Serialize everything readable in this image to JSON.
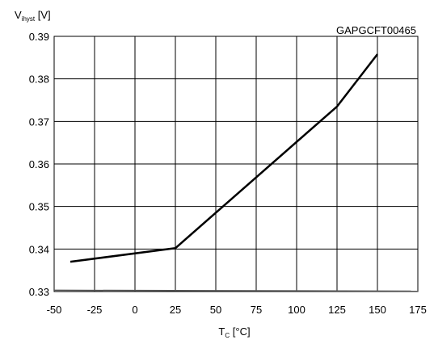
{
  "chart_data": {
    "type": "line",
    "figure_id": "GAPGCFT00465",
    "ylabel": {
      "main": "V",
      "sub": "ihyst",
      "unit": " [V]"
    },
    "xlabel": {
      "main": "T",
      "sub": "C",
      "unit": " [°C]"
    },
    "xlim": [
      -50,
      175
    ],
    "ylim": [
      0.33,
      0.39
    ],
    "x_ticks": [
      -50,
      -25,
      0,
      25,
      50,
      75,
      100,
      125,
      150,
      175
    ],
    "y_ticks": [
      0.33,
      0.34,
      0.35,
      0.36,
      0.37,
      0.38,
      0.39
    ],
    "x_tick_labels": [
      "-50",
      "-25",
      "0",
      "25",
      "50",
      "75",
      "100",
      "125",
      "150",
      "175"
    ],
    "y_tick_labels": [
      "0.33",
      "0.34",
      "0.35",
      "0.36",
      "0.37",
      "0.38",
      "0.39"
    ],
    "grid": true,
    "series": [
      {
        "x": [
          -40,
          25,
          125,
          150
        ],
        "y": [
          0.337,
          0.3402,
          0.3735,
          0.3858
        ]
      }
    ],
    "baseline": {
      "x": [
        -50,
        175
      ],
      "y": [
        0.3303,
        0.3301
      ]
    },
    "line_color": "#000000",
    "grid_color": "#000000"
  }
}
